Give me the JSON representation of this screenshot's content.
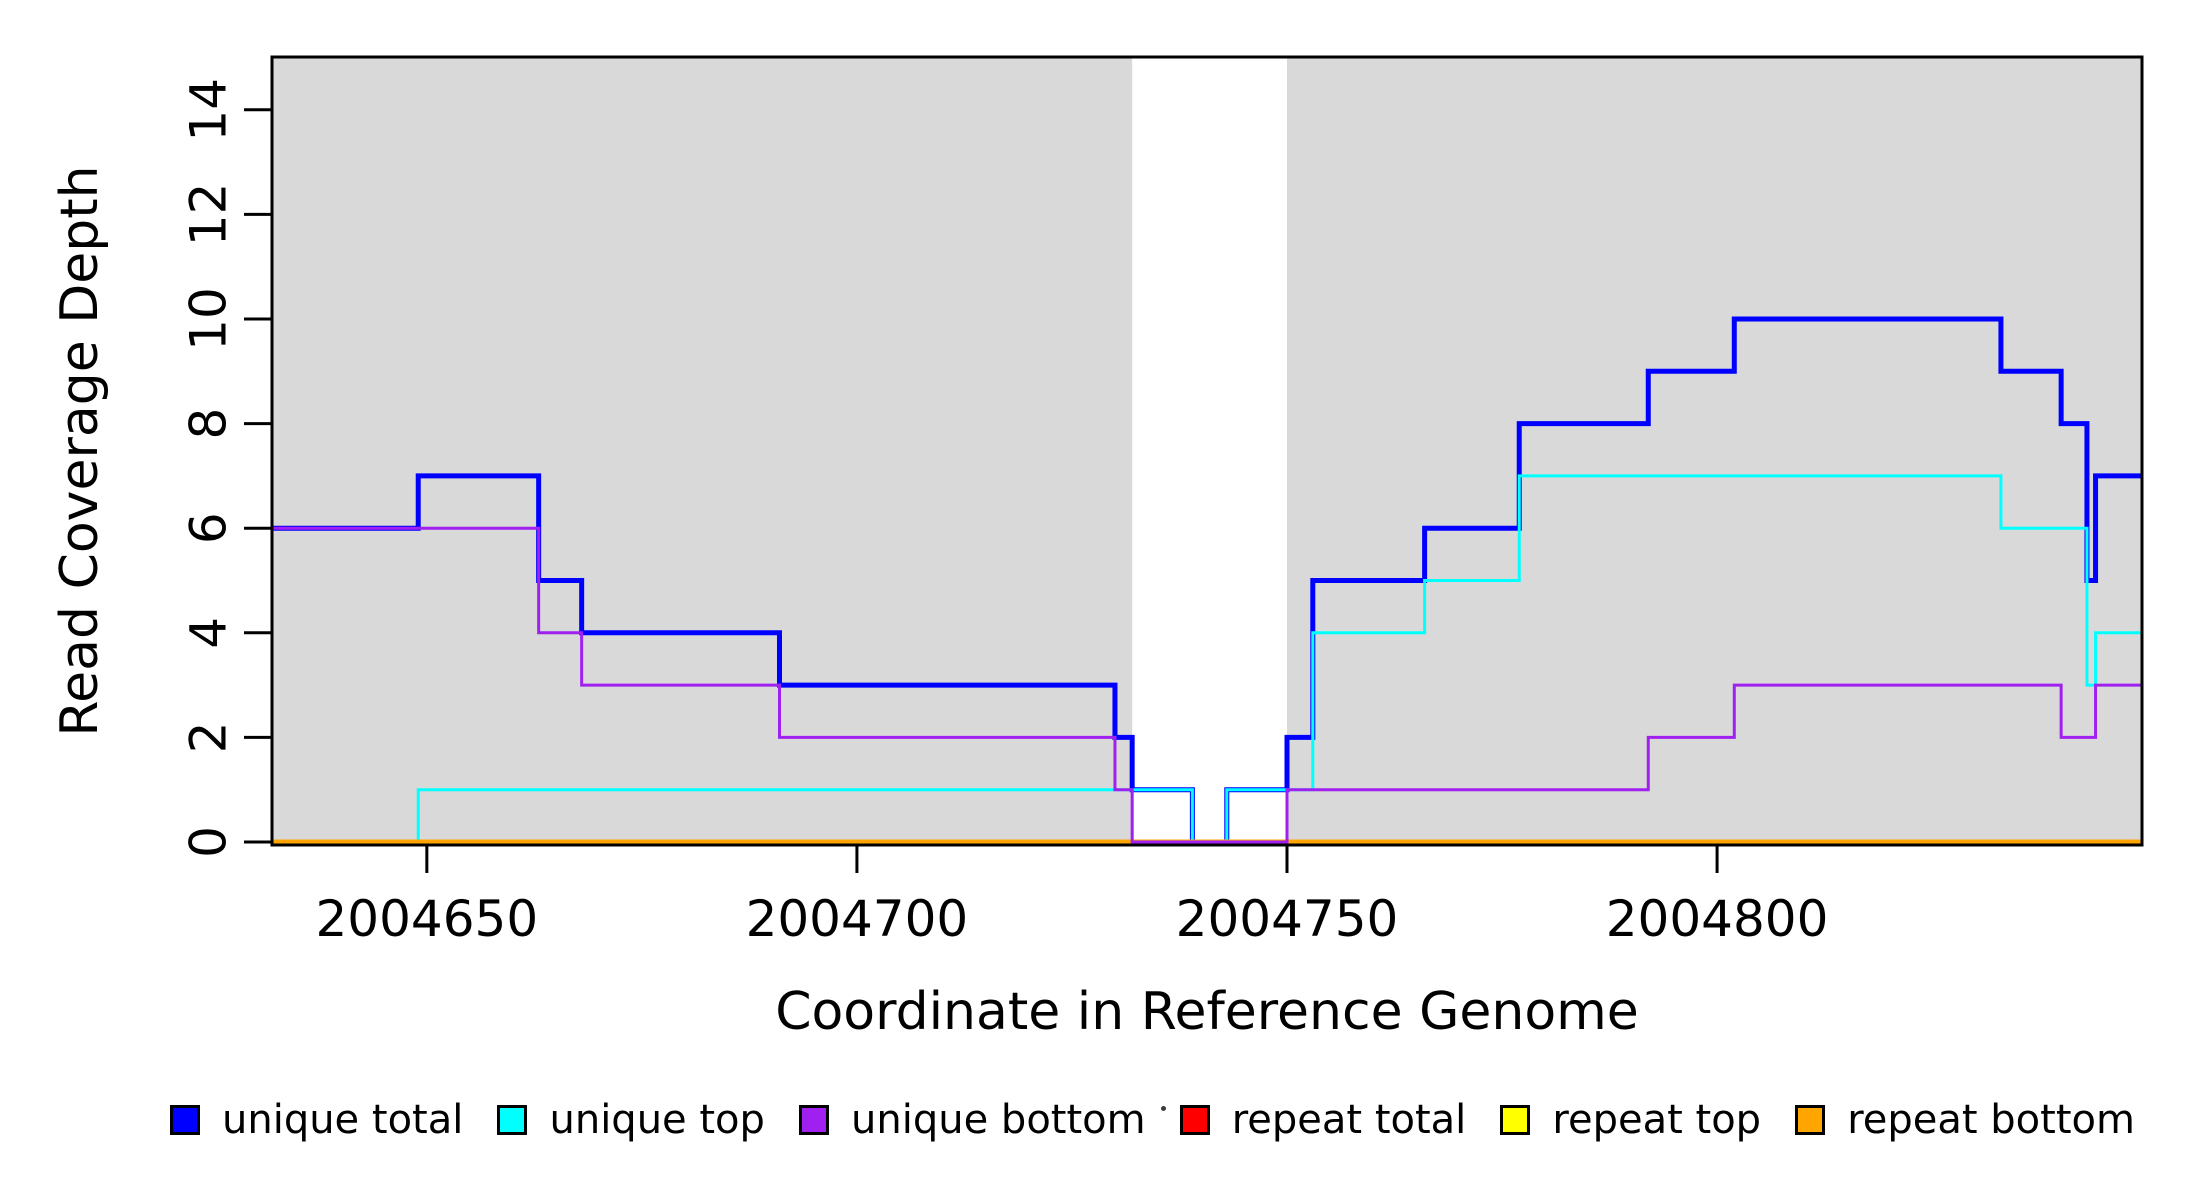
{
  "chart_data": {
    "type": "line",
    "step": true,
    "title": "",
    "xlabel": "Coordinate in Reference Genome",
    "ylabel": "Read Coverage Depth",
    "xlim": [
      2004632,
      2004849.4
    ],
    "ylim": [
      0,
      15
    ],
    "grid": false,
    "x_ticks": [
      2004650,
      2004700,
      2004750,
      2004800
    ],
    "x_tick_labels": [
      "2004650",
      "2004700",
      "2004750",
      "2004800"
    ],
    "y_ticks": [
      0,
      2,
      4,
      6,
      8,
      10,
      12,
      14
    ],
    "y_tick_labels": [
      "0",
      "2",
      "4",
      "6",
      "8",
      "10",
      "12",
      "14"
    ],
    "background_regions": [
      {
        "name": "left-gray-region",
        "x0": 2004632,
        "x1": 2004732,
        "color": "#d9d9d9"
      },
      {
        "name": "right-gray-region",
        "x0": 2004750,
        "x1": 2004849.4,
        "color": "#d9d9d9"
      }
    ],
    "series": [
      {
        "name": "unique total",
        "color": "#0000ff",
        "line_width": 5,
        "points": [
          [
            2004632,
            6
          ],
          [
            2004649,
            7
          ],
          [
            2004663,
            5
          ],
          [
            2004668,
            4
          ],
          [
            2004691,
            3
          ],
          [
            2004730,
            2
          ],
          [
            2004732,
            1
          ],
          [
            2004739,
            0
          ],
          [
            2004743,
            1
          ],
          [
            2004750,
            2
          ],
          [
            2004753,
            5
          ],
          [
            2004766,
            6
          ],
          [
            2004777,
            8
          ],
          [
            2004792,
            9
          ],
          [
            2004802,
            10
          ],
          [
            2004833,
            9
          ],
          [
            2004840,
            8
          ],
          [
            2004843,
            5
          ],
          [
            2004844,
            7
          ]
        ]
      },
      {
        "name": "unique top",
        "color": "#00ffff",
        "line_width": 3,
        "points": [
          [
            2004632,
            0
          ],
          [
            2004649,
            1
          ],
          [
            2004739,
            0
          ],
          [
            2004743,
            1
          ],
          [
            2004753,
            4
          ],
          [
            2004766,
            5
          ],
          [
            2004777,
            7
          ],
          [
            2004833,
            6
          ],
          [
            2004843,
            3
          ],
          [
            2004844,
            4
          ]
        ]
      },
      {
        "name": "repeat total",
        "color": "#ff0000",
        "line_width": 3,
        "points": [
          [
            2004632,
            0
          ]
        ]
      },
      {
        "name": "repeat top",
        "color": "#ffff00",
        "line_width": 3,
        "points": [
          [
            2004632,
            0
          ]
        ]
      },
      {
        "name": "repeat bottom",
        "color": "#ffa500",
        "line_width": 5,
        "points": [
          [
            2004632,
            0
          ]
        ]
      },
      {
        "name": "unique bottom",
        "color": "#a020f0",
        "line_width": 3,
        "points": [
          [
            2004632,
            6
          ],
          [
            2004663,
            4
          ],
          [
            2004668,
            3
          ],
          [
            2004691,
            2
          ],
          [
            2004730,
            1
          ],
          [
            2004732,
            0
          ],
          [
            2004750,
            1
          ],
          [
            2004792,
            2
          ],
          [
            2004802,
            3
          ],
          [
            2004840,
            2
          ],
          [
            2004844,
            3
          ]
        ]
      }
    ],
    "legend_position": "bottom",
    "legend": [
      {
        "label": "unique total",
        "color": "#0000ff"
      },
      {
        "label": "unique top",
        "color": "#00ffff"
      },
      {
        "label": "unique bottom",
        "color": "#a020f0"
      },
      {
        "label": "repeat total",
        "color": "#ff0000"
      },
      {
        "label": "repeat top",
        "color": "#ffff00"
      },
      {
        "label": "repeat bottom",
        "color": "#ffa500"
      }
    ]
  }
}
